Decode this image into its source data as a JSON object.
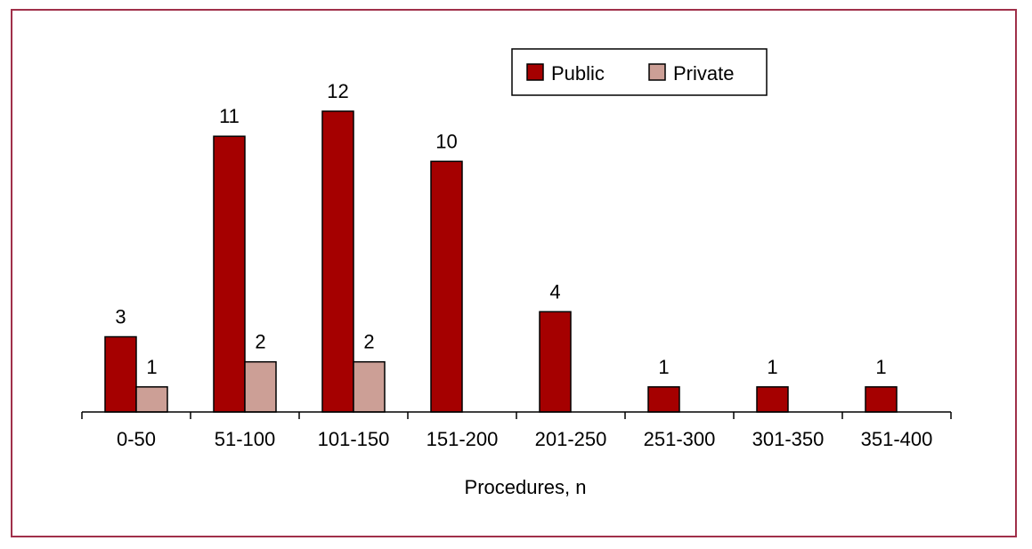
{
  "chart_data": {
    "type": "bar",
    "title": "",
    "xlabel": "Procedures, n",
    "ylabel": "",
    "categories": [
      "0-50",
      "51-100",
      "101-150",
      "151-200",
      "201-250",
      "251-300",
      "301-350",
      "351-400"
    ],
    "series": [
      {
        "name": "Public",
        "color": "#a50000",
        "values": [
          3,
          11,
          12,
          10,
          4,
          1,
          1,
          1
        ]
      },
      {
        "name": "Private",
        "color": "#cc9f96",
        "values": [
          1,
          2,
          2,
          null,
          null,
          null,
          null,
          null
        ]
      }
    ],
    "ylim": [
      0,
      12
    ],
    "grid": false,
    "legend_position": "top-right"
  }
}
